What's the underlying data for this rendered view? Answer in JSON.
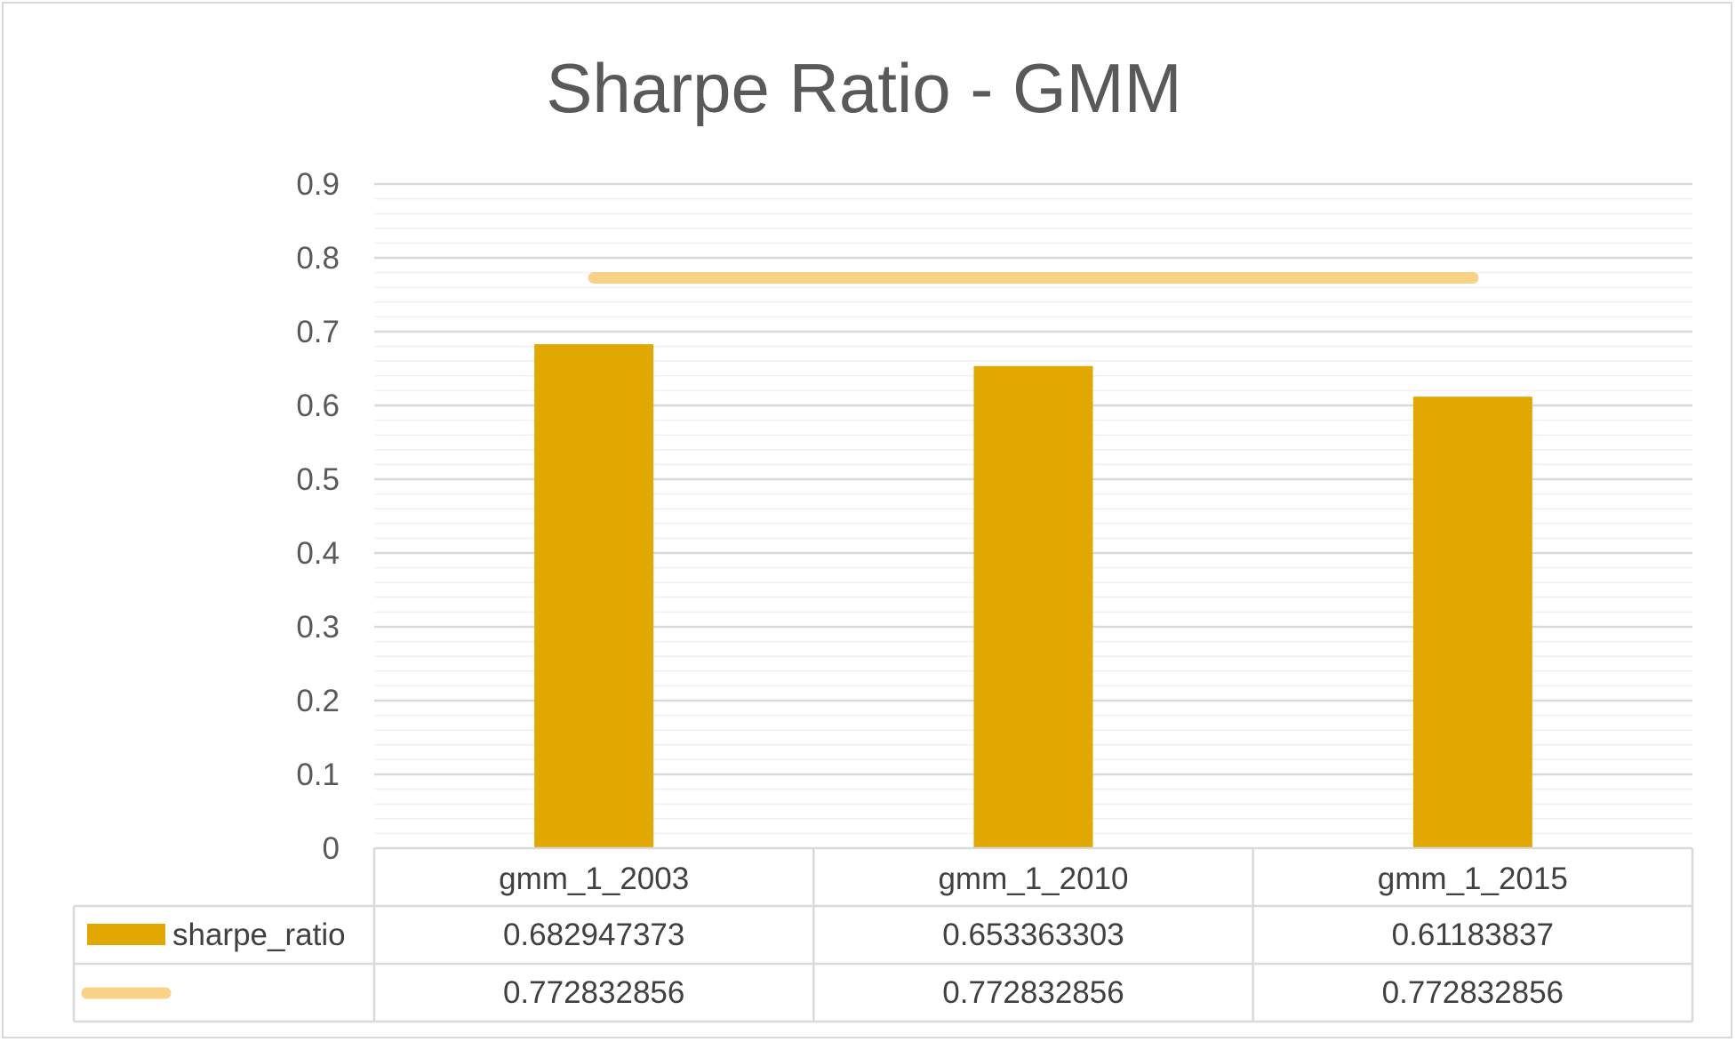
{
  "chart_data": {
    "type": "bar",
    "title": "Sharpe Ratio - GMM",
    "xlabel": "",
    "ylabel": "",
    "categories": [
      "gmm_1_2003",
      "gmm_1_2010",
      "gmm_1_2015"
    ],
    "ylim": [
      0,
      0.9
    ],
    "yticks": [
      "0",
      "0.1",
      "0.2",
      "0.3",
      "0.4",
      "0.5",
      "0.6",
      "0.7",
      "0.8",
      "0.9"
    ],
    "grid": true,
    "legend": "data-table",
    "series": [
      {
        "name": "sharpe_ratio",
        "type": "bar",
        "color": "#E0A800",
        "values": [
          0.682947373,
          0.653363303,
          0.61183837
        ],
        "labels": [
          "0.682947373",
          "0.653363303",
          "0.61183837"
        ]
      },
      {
        "name": "",
        "type": "line",
        "color": "#FAD287",
        "values": [
          0.772832856,
          0.772832856,
          0.772832856
        ],
        "labels": [
          "0.772832856",
          "0.772832856",
          "0.772832856"
        ]
      }
    ]
  }
}
